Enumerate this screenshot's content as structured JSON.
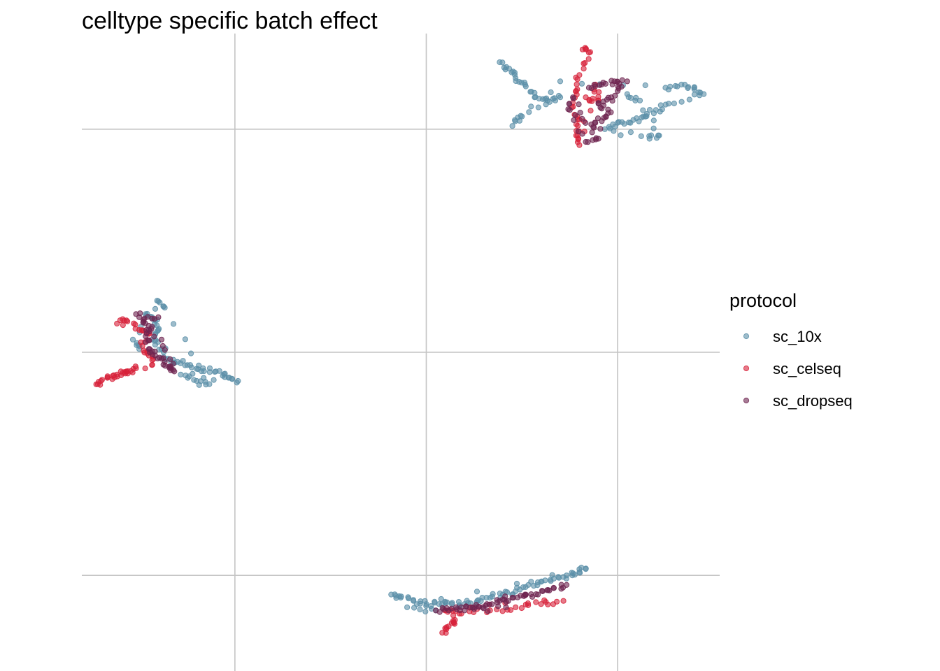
{
  "chart_data": {
    "type": "scatter",
    "title": "celltype specific batch effect",
    "xlabel": "",
    "ylabel": "",
    "xlim": [
      0,
      10
    ],
    "ylim": [
      0,
      10
    ],
    "xgrid": [
      2.4,
      5.4,
      8.4
    ],
    "ygrid": [
      1.5,
      5.0,
      8.5
    ],
    "grid": true,
    "axis_ticks_labels": false,
    "legend": {
      "title": "protocol",
      "position": "right"
    },
    "series": [
      {
        "name": "sc_10x",
        "color": "#5b8fa8",
        "clusters": [
          {
            "points": [
              [
                6.55,
                9.55
              ],
              [
                6.7,
                9.45
              ],
              [
                6.8,
                9.3
              ],
              [
                6.95,
                9.2
              ],
              [
                7.1,
                9.0
              ],
              [
                7.3,
                8.95
              ],
              [
                7.5,
                9.0
              ],
              [
                6.9,
                8.7
              ],
              [
                6.75,
                8.55
              ],
              [
                7.5,
                9.25
              ],
              [
                9.15,
                9.15
              ],
              [
                9.4,
                9.2
              ],
              [
                9.6,
                9.15
              ],
              [
                9.75,
                9.05
              ],
              [
                9.2,
                8.9
              ],
              [
                9.0,
                8.8
              ],
              [
                8.8,
                8.7
              ],
              [
                8.6,
                8.6
              ],
              [
                8.4,
                8.6
              ],
              [
                8.2,
                8.5
              ],
              [
                8.9,
                8.35
              ],
              [
                9.05,
                8.4
              ],
              [
                8.75,
                8.95
              ],
              [
                8.55,
                9.05
              ]
            ]
          },
          {
            "points": [
              [
                1.0,
                5.6
              ],
              [
                1.15,
                5.5
              ],
              [
                1.2,
                5.35
              ],
              [
                1.1,
                5.2
              ],
              [
                1.25,
                5.05
              ],
              [
                1.35,
                4.9
              ],
              [
                1.5,
                4.85
              ],
              [
                1.7,
                4.8
              ],
              [
                1.9,
                4.75
              ],
              [
                2.1,
                4.7
              ],
              [
                2.3,
                4.6
              ],
              [
                2.45,
                4.55
              ],
              [
                1.55,
                4.65
              ],
              [
                1.8,
                4.55
              ],
              [
                2.0,
                4.5
              ],
              [
                1.3,
                5.7
              ],
              [
                1.2,
                5.8
              ],
              [
                0.8,
                5.2
              ],
              [
                0.9,
                5.05
              ]
            ]
          },
          {
            "points": [
              [
                4.85,
                1.2
              ],
              [
                5.0,
                1.15
              ],
              [
                5.2,
                1.1
              ],
              [
                5.4,
                1.05
              ],
              [
                5.6,
                1.05
              ],
              [
                5.8,
                1.05
              ],
              [
                6.0,
                1.05
              ],
              [
                6.2,
                1.1
              ],
              [
                6.4,
                1.15
              ],
              [
                6.6,
                1.2
              ],
              [
                6.8,
                1.25
              ],
              [
                7.0,
                1.35
              ],
              [
                7.2,
                1.4
              ],
              [
                7.4,
                1.45
              ],
              [
                7.6,
                1.5
              ],
              [
                7.8,
                1.55
              ],
              [
                7.9,
                1.6
              ],
              [
                5.1,
                1.0
              ],
              [
                5.55,
                0.95
              ]
            ]
          }
        ]
      },
      {
        "name": "sc_celseq",
        "color": "#d7223a",
        "clusters": [
          {
            "points": [
              [
                7.85,
                9.75
              ],
              [
                7.95,
                9.7
              ],
              [
                7.8,
                9.35
              ],
              [
                7.75,
                9.1
              ],
              [
                7.7,
                8.85
              ],
              [
                7.8,
                8.65
              ],
              [
                7.75,
                8.4
              ],
              [
                7.8,
                8.25
              ],
              [
                8.05,
                9.2
              ],
              [
                8.1,
                8.95
              ],
              [
                7.9,
                9.0
              ]
            ]
          },
          {
            "points": [
              [
                0.55,
                5.45
              ],
              [
                0.7,
                5.5
              ],
              [
                0.9,
                5.35
              ],
              [
                1.05,
                5.3
              ],
              [
                0.95,
                5.1
              ],
              [
                1.05,
                4.95
              ],
              [
                1.1,
                4.8
              ],
              [
                0.4,
                4.6
              ],
              [
                0.55,
                4.65
              ],
              [
                0.7,
                4.7
              ],
              [
                0.85,
                4.75
              ],
              [
                0.3,
                4.55
              ],
              [
                0.25,
                4.5
              ]
            ]
          },
          {
            "points": [
              [
                5.65,
                0.6
              ],
              [
                5.75,
                0.7
              ],
              [
                5.85,
                0.8
              ],
              [
                5.7,
                0.95
              ],
              [
                5.95,
                0.9
              ],
              [
                6.4,
                0.95
              ],
              [
                6.8,
                1.0
              ],
              [
                7.2,
                1.05
              ],
              [
                7.55,
                1.1
              ],
              [
                6.1,
                1.0
              ]
            ]
          }
        ]
      },
      {
        "name": "sc_dropseq",
        "color": "#6e2450",
        "clusters": [
          {
            "points": [
              [
                7.95,
                9.15
              ],
              [
                8.15,
                9.2
              ],
              [
                8.35,
                9.25
              ],
              [
                8.55,
                9.25
              ],
              [
                8.3,
                9.0
              ],
              [
                8.1,
                8.9
              ],
              [
                8.25,
                8.75
              ],
              [
                8.05,
                8.6
              ],
              [
                8.0,
                8.45
              ],
              [
                7.7,
                9.0
              ],
              [
                7.65,
                8.8
              ],
              [
                7.9,
                8.3
              ],
              [
                8.1,
                8.35
              ],
              [
                8.4,
                9.1
              ]
            ]
          },
          {
            "points": [
              [
                0.9,
                5.55
              ],
              [
                1.1,
                5.4
              ],
              [
                1.0,
                5.25
              ],
              [
                1.05,
                5.05
              ],
              [
                1.15,
                4.95
              ],
              [
                1.3,
                4.85
              ],
              [
                1.4,
                4.75
              ],
              [
                1.45,
                4.7
              ],
              [
                1.25,
                5.2
              ],
              [
                0.85,
                5.6
              ],
              [
                1.2,
                5.55
              ]
            ]
          },
          {
            "points": [
              [
                5.55,
                0.95
              ],
              [
                5.75,
                0.95
              ],
              [
                5.95,
                1.0
              ],
              [
                6.15,
                1.0
              ],
              [
                6.35,
                1.05
              ],
              [
                6.55,
                1.1
              ],
              [
                6.75,
                1.15
              ],
              [
                6.95,
                1.2
              ],
              [
                7.15,
                1.2
              ],
              [
                7.4,
                1.3
              ],
              [
                7.6,
                1.35
              ],
              [
                6.0,
                0.95
              ],
              [
                6.65,
                1.0
              ]
            ]
          }
        ]
      }
    ]
  }
}
